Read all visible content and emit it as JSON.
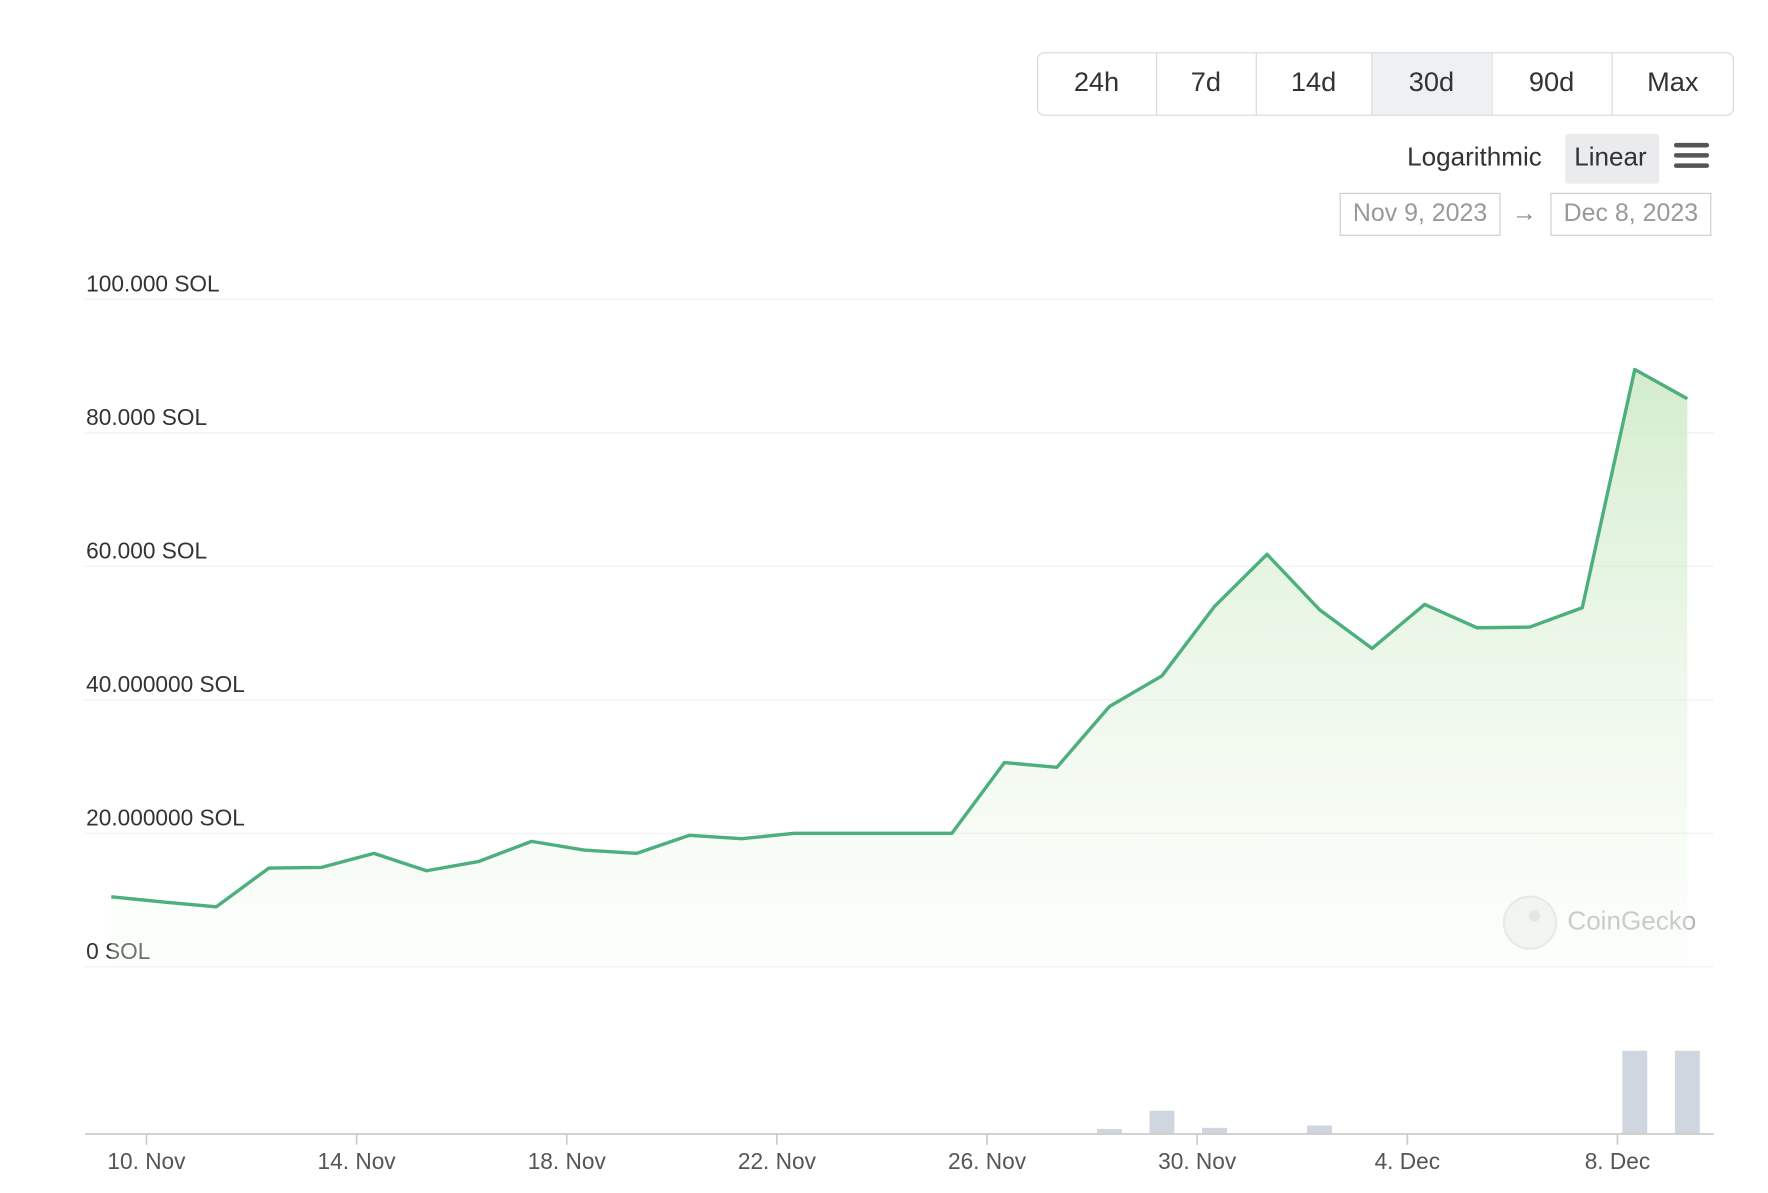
{
  "controls": {
    "ranges": [
      "24h",
      "7d",
      "14d",
      "30d",
      "90d",
      "Max"
    ],
    "active_range": "30d",
    "scales": [
      "Logarithmic",
      "Linear"
    ],
    "active_scale": "Linear",
    "date_from": "Nov 9, 2023",
    "date_to": "Dec 8, 2023",
    "watermark": "CoinGecko"
  },
  "chart_data": {
    "type": "area",
    "categories": [
      null,
      null,
      null,
      null,
      null,
      null,
      null,
      null,
      null,
      null,
      null,
      null,
      null,
      null,
      null,
      null,
      null,
      null,
      null,
      null,
      null,
      null,
      null,
      null,
      null,
      null,
      null,
      null,
      null,
      null,
      null
    ],
    "values": [
      10.5,
      9.7,
      9.0,
      14.8,
      14.9,
      17.0,
      14.4,
      15.8,
      18.8,
      17.5,
      17.0,
      19.7,
      19.2,
      20.0,
      20.0,
      20.0,
      20.0,
      30.6,
      29.9,
      39.0,
      43.6,
      54.0,
      61.8,
      53.5,
      47.7,
      54.3,
      50.8,
      50.9,
      53.8,
      89.5,
      85.1
    ],
    "color": "#4caf7d",
    "volume_values": [
      0,
      0,
      0,
      0,
      0,
      0,
      0,
      0,
      0,
      0,
      0,
      0,
      0,
      0,
      0,
      0,
      0,
      0,
      0,
      4,
      20,
      5,
      0,
      7,
      0,
      0,
      0,
      0,
      0,
      73,
      73
    ],
    "volume_color": "#cfd6e0",
    "xlim": [
      -0.5,
      30.5
    ],
    "xticks": [
      {
        "value": 0.67,
        "label": "10. Nov"
      },
      {
        "value": 4.67,
        "label": "14. Nov"
      },
      {
        "value": 8.67,
        "label": "18. Nov"
      },
      {
        "value": 12.67,
        "label": "22. Nov"
      },
      {
        "value": 16.67,
        "label": "26. Nov"
      },
      {
        "value": 20.67,
        "label": "30. Nov"
      },
      {
        "value": 24.67,
        "label": "4. Dec"
      },
      {
        "value": 28.67,
        "label": "8. Dec"
      }
    ],
    "ylim": [
      0,
      100
    ],
    "yticks": [
      {
        "value": 0,
        "label": "0 SOL"
      },
      {
        "value": 20,
        "label": "20.000000 SOL"
      },
      {
        "value": 40,
        "label": "40.000000 SOL"
      },
      {
        "value": 60,
        "label": "60.000 SOL"
      },
      {
        "value": 80,
        "label": "80.000 SOL"
      },
      {
        "value": 100,
        "label": "100.000 SOL"
      }
    ],
    "grid": true
  }
}
